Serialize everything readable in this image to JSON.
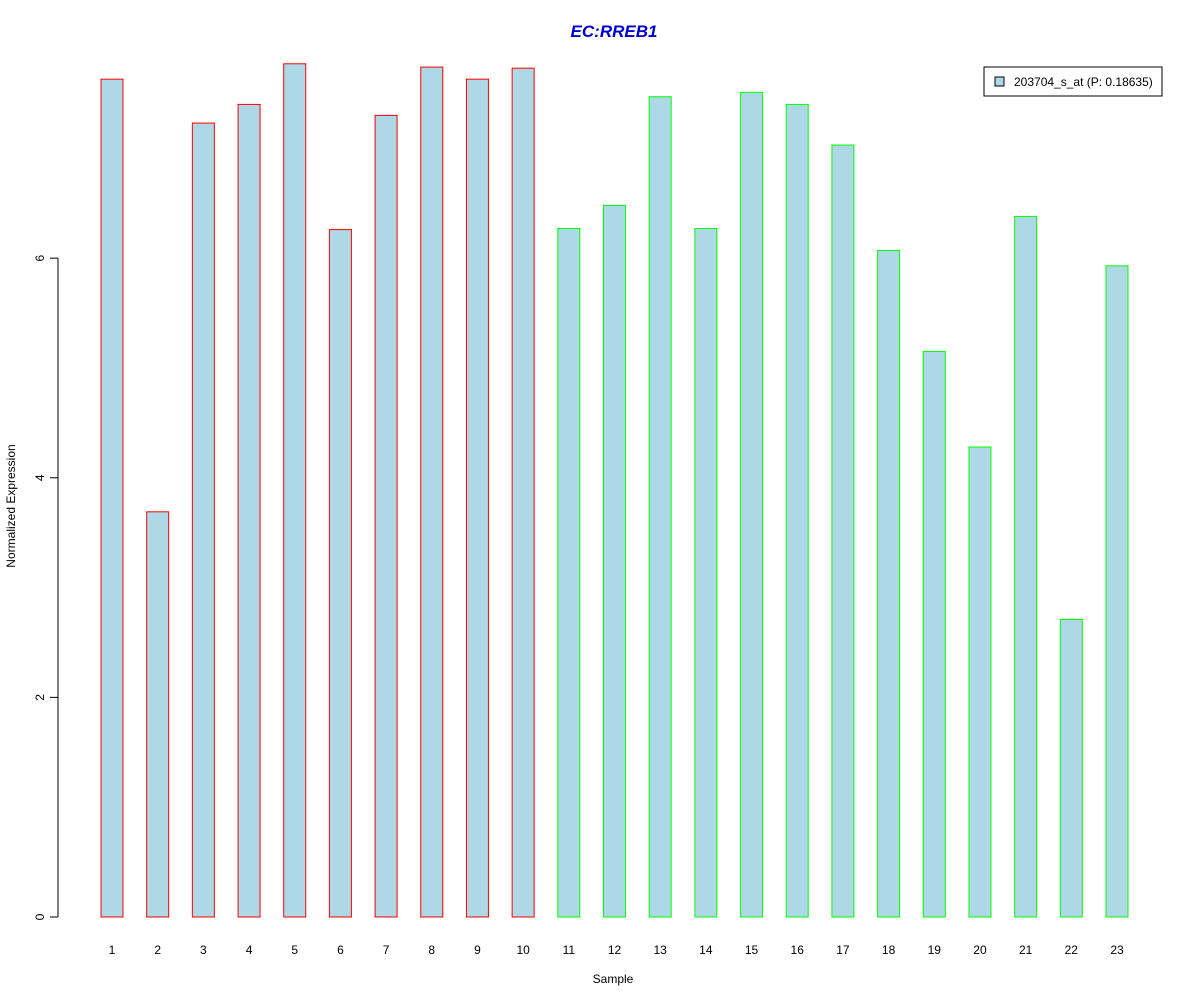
{
  "chart_data": {
    "type": "bar",
    "title": "EC:RREB1",
    "xlabel": "Sample",
    "ylabel": "Normalized Expression",
    "categories": [
      "1",
      "2",
      "3",
      "4",
      "5",
      "6",
      "7",
      "8",
      "9",
      "10",
      "11",
      "12",
      "13",
      "14",
      "15",
      "16",
      "17",
      "18",
      "19",
      "20",
      "21",
      "22",
      "23"
    ],
    "series": [
      {
        "name": "203704_s_at (P: 0.18635)",
        "values": [
          7.63,
          3.69,
          7.23,
          7.4,
          7.77,
          6.26,
          7.3,
          7.74,
          7.63,
          7.73,
          6.27,
          6.48,
          7.47,
          6.27,
          7.51,
          7.4,
          7.03,
          6.07,
          5.15,
          4.28,
          6.38,
          2.71,
          5.93
        ]
      }
    ],
    "group_of_sample": [
      "a",
      "a",
      "a",
      "a",
      "a",
      "a",
      "a",
      "a",
      "a",
      "a",
      "b",
      "b",
      "b",
      "b",
      "b",
      "b",
      "b",
      "b",
      "b",
      "b",
      "b",
      "b",
      "b"
    ],
    "yticks": [
      0,
      2,
      4,
      6
    ],
    "ylim": [
      0,
      7.85
    ],
    "grid": false,
    "legend_position": "top-right",
    "colors": {
      "bar_fill": "#add8e6",
      "group_a_border": "#ff0000",
      "group_b_border": "#00ff00",
      "title": "#0000cc"
    }
  }
}
